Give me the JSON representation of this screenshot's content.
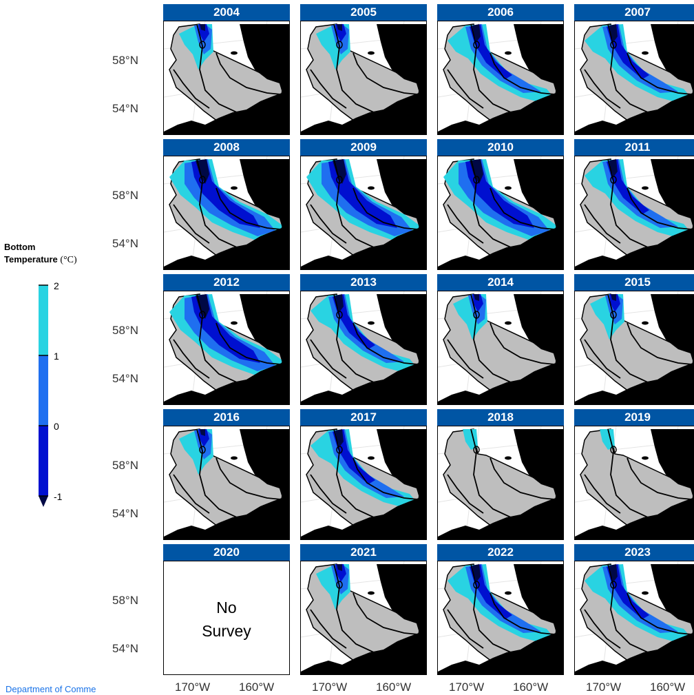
{
  "legend": {
    "title_line1": "Bottom",
    "title_line2": "Temperature",
    "unit": "(°C)",
    "ticks": [
      "2",
      "1",
      "0",
      "-1"
    ],
    "colors": {
      "band_1_2": "#29d3e2",
      "band_0_1": "#1f6ff0",
      "band_m1_0": "#0010d0",
      "below_m1": "#000845"
    }
  },
  "axes": {
    "lat_labels": [
      "58°N",
      "54°N"
    ],
    "lon_labels": [
      "170°W",
      "160°W"
    ]
  },
  "panels": [
    {
      "year": "2004",
      "cold": 1
    },
    {
      "year": "2005",
      "cold": 1
    },
    {
      "year": "2006",
      "cold": 2
    },
    {
      "year": "2007",
      "cold": 2
    },
    {
      "year": "2008",
      "cold": 3
    },
    {
      "year": "2009",
      "cold": 3
    },
    {
      "year": "2010",
      "cold": 3
    },
    {
      "year": "2011",
      "cold": 2
    },
    {
      "year": "2012",
      "cold": 3
    },
    {
      "year": "2013",
      "cold": 2
    },
    {
      "year": "2014",
      "cold": 1
    },
    {
      "year": "2015",
      "cold": 1
    },
    {
      "year": "2016",
      "cold": 1
    },
    {
      "year": "2017",
      "cold": 2
    },
    {
      "year": "2018",
      "cold": 0
    },
    {
      "year": "2019",
      "cold": 0
    },
    {
      "year": "2020",
      "cold": -1,
      "note_line1": "No",
      "note_line2": "Survey"
    },
    {
      "year": "2021",
      "cold": 1
    },
    {
      "year": "2022",
      "cold": 2
    },
    {
      "year": "2023",
      "cold": 2
    }
  ],
  "footer": {
    "link": "Department of Comme"
  },
  "style": {
    "strip_color": "#0055a4",
    "survey_grey": "#bebebe",
    "land": "#000000"
  }
}
